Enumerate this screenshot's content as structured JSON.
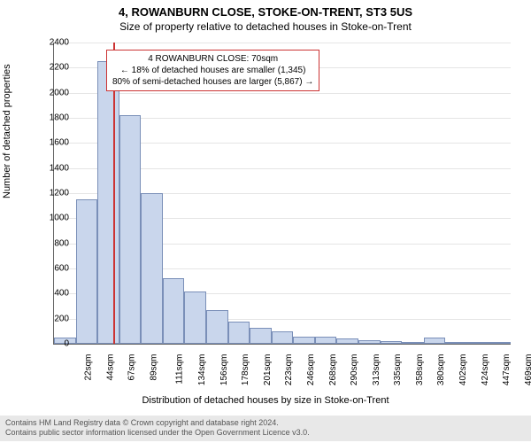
{
  "title_main": "4, ROWANBURN CLOSE, STOKE-ON-TRENT, ST3 5US",
  "title_sub": "Size of property relative to detached houses in Stoke-on-Trent",
  "y_axis_label": "Number of detached properties",
  "x_axis_label": "Distribution of detached houses by size in Stoke-on-Trent",
  "chart": {
    "type": "histogram",
    "ylim": [
      0,
      2400
    ],
    "ytick_step": 200,
    "background_color": "#ffffff",
    "grid_color": "#e5e5e5",
    "bar_fill": "#c9d6ec",
    "bar_border": "#7a8fb8",
    "marker_color": "#cc3333",
    "marker_x_value": 70,
    "x_start": 20,
    "x_step": 22.5,
    "categories": [
      "22sqm",
      "44sqm",
      "67sqm",
      "89sqm",
      "111sqm",
      "134sqm",
      "156sqm",
      "178sqm",
      "201sqm",
      "223sqm",
      "246sqm",
      "268sqm",
      "290sqm",
      "313sqm",
      "335sqm",
      "358sqm",
      "380sqm",
      "402sqm",
      "424sqm",
      "447sqm",
      "469sqm"
    ],
    "values": [
      50,
      1150,
      2250,
      1820,
      1200,
      520,
      420,
      270,
      180,
      130,
      100,
      60,
      60,
      40,
      30,
      20,
      15,
      50,
      5,
      5,
      5
    ]
  },
  "annotation": {
    "line1": "4 ROWANBURN CLOSE: 70sqm",
    "line2": "← 18% of detached houses are smaller (1,345)",
    "line3": "80% of semi-detached houses are larger (5,867) →"
  },
  "footer": {
    "line1": "Contains HM Land Registry data © Crown copyright and database right 2024.",
    "line2": "Contains public sector information licensed under the Open Government Licence v3.0."
  }
}
